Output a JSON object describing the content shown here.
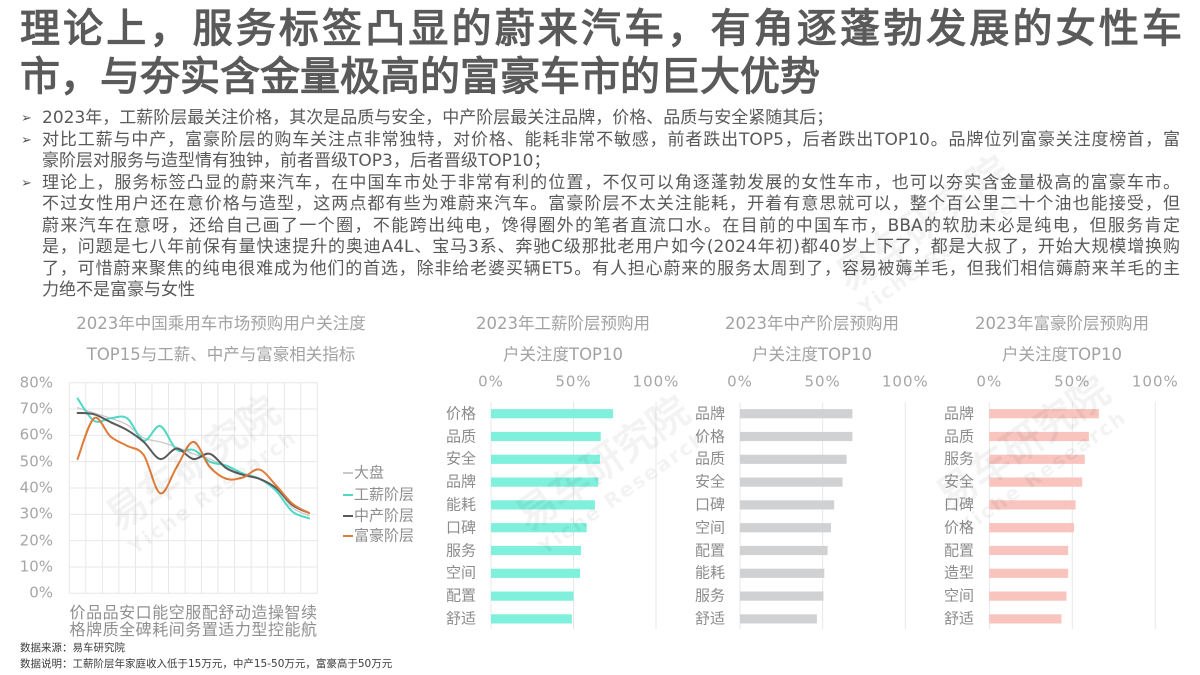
{
  "title": {
    "lines": [
      "理论上，服务标签凸显的蔚来汽车，有角逐蓬勃发展的女性车",
      "市，与夯实含金量极高的富豪车市的巨大优势"
    ]
  },
  "bullet_icon": "➢",
  "bullets": [
    {
      "lines": [
        "2023年，工薪阶层最关注价格，其次是品质与安全，中产阶层最关注品牌，价格、品质与安全紧随其后；"
      ]
    },
    {
      "lines": [
        "对比工薪与中产，富豪阶层的购车关注点非常独特，对价格、能耗非常不敏感，前者跌出TOP5，后者跌出TOP10。品牌位列富豪关注度榜首，富",
        "豪阶层对服务与造型情有独钟，前者晋级TOP3，后者晋级TOP10；"
      ]
    },
    {
      "lines": [
        "理论上，服务标签凸显的蔚来汽车，在中国车市处于非常有利的位置，不仅可以角逐蓬勃发展的女性车市，也可以夯实含金量极高的富豪车市。",
        "不过女性用户还在意价格与造型，这两点都有些为难蔚来汽车。富豪阶层不太关注能耗，开着有意思就可以，整个百公里二十个油也能接受，但",
        "蔚来汽车在意呀，还给自己画了一个圈，不能跨出纯电，馋得圈外的笔者直流口水。在目前的中国车市，BBA的软肋未必是纯电，但服务肯定",
        "是，问题是七八年前保有量快速提升的奥迪A4L、宝马3系、奔驰C级那批老用户如今(2024年初)都40岁上下了，都是大叔了，开始大规模增换购",
        "了，可惜蔚来聚焦的纯电很难成为他们的首选，除非给老婆买辆ET5。有人担心蔚来的服务太周到了，容易被薅羊毛，但我们相信薅蔚来羊毛的主",
        "力绝不是富豪与女性"
      ]
    }
  ],
  "chart_data": [
    {
      "type": "line",
      "title": "2023年中国乘用车市场预购用户关注度TOP15与工薪、中产与富豪相关指标",
      "title_lines": [
        "2023年中国乘用车市场预购用户关注度",
        "TOP15与工薪、中产与富豪相关指标"
      ],
      "xlabel": "",
      "ylabel": "",
      "categories": [
        "价格",
        "品牌",
        "品质",
        "安全",
        "口碑",
        "能耗",
        "空间",
        "服务",
        "配置",
        "舒适",
        "动力",
        "造型",
        "操控",
        "智能",
        "续航"
      ],
      "yticks": [
        "0%",
        "10%",
        "20%",
        "30%",
        "40%",
        "50%",
        "60%",
        "70%",
        "80%"
      ],
      "ylim": [
        0,
        80
      ],
      "grid": true,
      "legend_position": "right",
      "series": [
        {
          "name": "大盘",
          "color": "#c9c9c9",
          "values": [
            70.5,
            68.5,
            66.5,
            64,
            59,
            57.5,
            55.5,
            53,
            51,
            48,
            45.5,
            43.5,
            40,
            32.5,
            29.5
          ]
        },
        {
          "name": "工薪阶层",
          "color": "#4fd9c6",
          "values": [
            74,
            65.5,
            66.5,
            66.5,
            58,
            63.5,
            54.5,
            54.5,
            50,
            48.5,
            45.5,
            43.5,
            39,
            31,
            28.5
          ]
        },
        {
          "name": "中产阶层",
          "color": "#5a5a5a",
          "values": [
            68.5,
            68,
            65,
            62,
            57.5,
            51,
            55,
            51,
            53,
            47.5,
            45,
            43.5,
            40,
            33.5,
            30.5
          ]
        },
        {
          "name": "富豪阶层",
          "color": "#e07b39",
          "values": [
            51,
            66.5,
            59.5,
            56,
            52.5,
            38,
            48,
            57.5,
            48,
            43.5,
            44,
            47,
            41,
            34,
            30.5
          ]
        }
      ]
    },
    {
      "type": "bar",
      "orientation": "horizontal",
      "title": "2023年工薪阶层预购用户关注度TOP10",
      "title_lines": [
        "2023年工薪阶层预购用",
        "户关注度TOP10"
      ],
      "categories": [
        "价格",
        "品质",
        "安全",
        "品牌",
        "能耗",
        "口碑",
        "服务",
        "空间",
        "配置",
        "舒适"
      ],
      "values": [
        74,
        66.5,
        66,
        65,
        63,
        58,
        54.5,
        54,
        50,
        49
      ],
      "xticks": [
        "0%",
        "50%",
        "100%"
      ],
      "xlim": [
        0,
        100
      ],
      "grid": true,
      "color": "#7ef0dc"
    },
    {
      "type": "bar",
      "orientation": "horizontal",
      "title": "2023年中产阶层预购用户关注度TOP10",
      "title_lines": [
        "2023年中产阶层预购用",
        "户关注度TOP10"
      ],
      "categories": [
        "品牌",
        "价格",
        "品质",
        "安全",
        "口碑",
        "空间",
        "配置",
        "能耗",
        "服务",
        "舒适"
      ],
      "values": [
        68,
        68,
        64.5,
        62,
        57,
        55,
        53,
        51,
        50.5,
        46.5
      ],
      "xticks": [
        "0%",
        "50%",
        "100%"
      ],
      "xlim": [
        0,
        100
      ],
      "grid": true,
      "color": "#d0d1d3"
    },
    {
      "type": "bar",
      "orientation": "horizontal",
      "title": "2023年富豪阶层预购用户关注度TOP10",
      "title_lines": [
        "2023年富豪阶层预购用",
        "户关注度TOP10"
      ],
      "categories": [
        "品牌",
        "品质",
        "服务",
        "安全",
        "口碑",
        "价格",
        "配置",
        "造型",
        "空间",
        "舒适"
      ],
      "values": [
        66,
        60,
        57.5,
        56,
        52,
        51,
        47.5,
        47.5,
        46.5,
        43.5
      ],
      "xticks": [
        "0%",
        "50%",
        "100%"
      ],
      "xlim": [
        0,
        100
      ],
      "grid": true,
      "color": "#f8c4bd"
    }
  ],
  "footer": {
    "source": "数据来源：易车研究院",
    "note": "数据说明：工薪阶层年家庭收入低于15万元，中产15-50万元，富豪高于50万元"
  },
  "watermark": {
    "cn": "易车研究院",
    "en": "Yiche Research"
  }
}
